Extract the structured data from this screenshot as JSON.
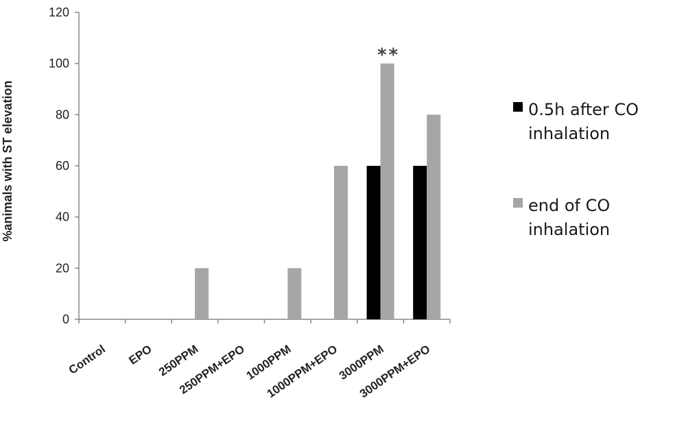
{
  "chart_data": {
    "type": "bar",
    "title": "",
    "xlabel": "",
    "ylabel": "%animals with ST elevation",
    "ylim": [
      0,
      120
    ],
    "yticks": [
      0,
      20,
      40,
      60,
      80,
      100,
      120
    ],
    "grid": false,
    "legend_position": "right",
    "categories": [
      "Control",
      "EPO",
      "250PPM",
      "250PPM+EPO",
      "1000PPM",
      "1000PPM+EPO",
      "3000PPM",
      "3000PPM+EPO"
    ],
    "series": [
      {
        "name": "0.5h after CO inhalation",
        "legend_lines": [
          "0.5h after CO",
          "inhalation"
        ],
        "color": "#000000",
        "values": [
          0,
          0,
          0,
          0,
          0,
          0,
          60,
          60
        ]
      },
      {
        "name": "end of CO inhalation",
        "legend_lines": [
          "end of CO",
          "inhalation"
        ],
        "color": "#a6a6a6",
        "values": [
          0,
          0,
          20,
          0,
          20,
          60,
          100,
          80
        ]
      }
    ],
    "annotations": [
      {
        "category": "3000PPM",
        "series": 1,
        "text": "**"
      }
    ]
  }
}
